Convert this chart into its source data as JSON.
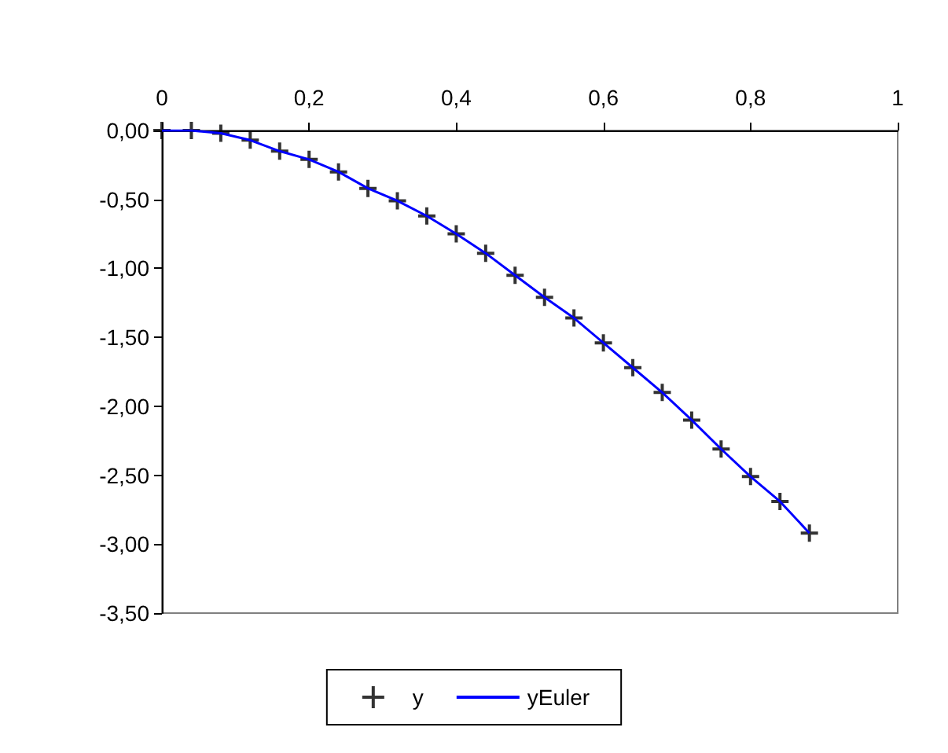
{
  "chart_data": {
    "type": "line",
    "x": [
      0,
      0.04,
      0.08,
      0.12,
      0.16,
      0.2,
      0.24,
      0.28,
      0.32,
      0.36,
      0.4,
      0.44,
      0.48,
      0.52,
      0.56,
      0.6,
      0.64,
      0.68,
      0.72,
      0.76,
      0.8,
      0.84,
      0.88
    ],
    "series": [
      {
        "name": "y",
        "type": "scatter",
        "marker": "cross",
        "color": "#000000",
        "values": [
          0,
          0,
          -0.02,
          -0.07,
          -0.15,
          -0.21,
          -0.3,
          -0.42,
          -0.51,
          -0.62,
          -0.75,
          -0.89,
          -1.05,
          -1.21,
          -1.36,
          -1.54,
          -1.72,
          -1.9,
          -2.1,
          -2.31,
          -2.51,
          -2.69,
          -2.92
        ]
      },
      {
        "name": "yEuler",
        "marker": "none",
        "color": "#0000ff",
        "values": [
          0,
          0,
          -0.02,
          -0.07,
          -0.15,
          -0.21,
          -0.3,
          -0.42,
          -0.51,
          -0.62,
          -0.75,
          -0.89,
          -1.05,
          -1.21,
          -1.36,
          -1.54,
          -1.72,
          -1.9,
          -2.1,
          -2.31,
          -2.51,
          -2.69,
          -2.92
        ]
      }
    ],
    "xlim": [
      0,
      1
    ],
    "xticks": [
      {
        "value": 0,
        "label": "0"
      },
      {
        "value": 0.2,
        "label": "0,2"
      },
      {
        "value": 0.4,
        "label": "0,4"
      },
      {
        "value": 0.6,
        "label": "0,6"
      },
      {
        "value": 0.8,
        "label": "0,8"
      },
      {
        "value": 1,
        "label": "1"
      }
    ],
    "ylim": [
      -3.5,
      0
    ],
    "yticks": [
      {
        "value": 0,
        "label": "0,00"
      },
      {
        "value": -0.5,
        "label": "-0,50"
      },
      {
        "value": -1,
        "label": "-1,00"
      },
      {
        "value": -1.5,
        "label": "-1,50"
      },
      {
        "value": -2,
        "label": "-2,00"
      },
      {
        "value": -2.5,
        "label": "-2,50"
      },
      {
        "value": -3,
        "label": "-3,00"
      },
      {
        "value": -3.5,
        "label": "-3,50"
      }
    ],
    "grid": false,
    "legend": "bottom"
  }
}
